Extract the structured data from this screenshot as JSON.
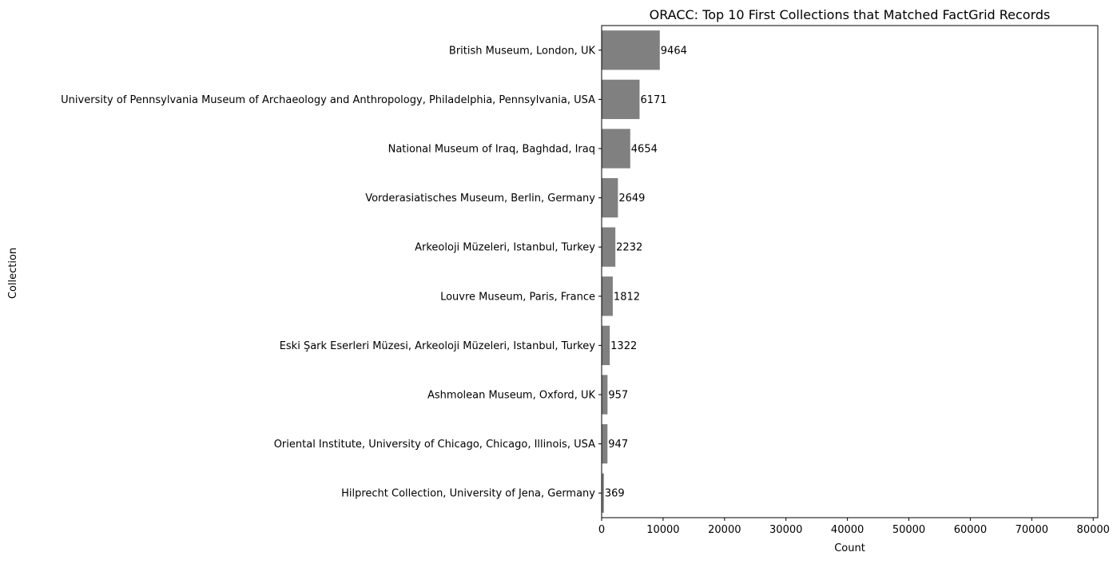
{
  "chart_data": {
    "type": "bar",
    "orientation": "horizontal",
    "title": "ORACC: Top 10 First Collections that Matched FactGrid Records",
    "xlabel": "Count",
    "ylabel": "Collection",
    "categories": [
      "British Museum, London, UK",
      "University of Pennsylvania Museum of Archaeology and Anthropology, Philadelphia, Pennsylvania, USA",
      "National Museum of Iraq, Baghdad, Iraq",
      "Vorderasiatisches Museum, Berlin, Germany",
      "Arkeoloji Müzeleri, Istanbul, Turkey",
      "Louvre Museum, Paris, France",
      "Eski Şark Eserleri Müzesi, Arkeoloji Müzeleri, Istanbul, Turkey",
      "Ashmolean Museum, Oxford, UK",
      "Oriental Institute, University of Chicago, Chicago, Illinois, USA",
      "Hilprecht Collection, University of Jena, Germany"
    ],
    "values": [
      9464,
      6171,
      4654,
      2649,
      2232,
      1812,
      1322,
      957,
      947,
      369
    ],
    "data_labels": [
      "9464",
      "6171",
      "4654",
      "2649",
      "2232",
      "1812",
      "1322",
      "957",
      "947",
      "369"
    ],
    "xlim": [
      0,
      80750
    ],
    "xticks": [
      0,
      10000,
      20000,
      30000,
      40000,
      50000,
      60000,
      70000,
      80000
    ],
    "xtick_labels": [
      "0",
      "10000",
      "20000",
      "30000",
      "40000",
      "50000",
      "60000",
      "70000",
      "80000"
    ],
    "grid": false,
    "legend": "none",
    "bar_color": "#808080"
  }
}
